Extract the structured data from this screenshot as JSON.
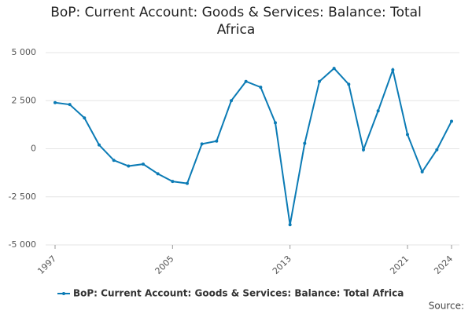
{
  "chart_data": {
    "type": "line",
    "title": "BoP: Current Account: Goods & Services: Balance: Total Africa",
    "x": [
      1997,
      1998,
      1999,
      2000,
      2001,
      2002,
      2003,
      2004,
      2005,
      2006,
      2007,
      2008,
      2009,
      2010,
      2011,
      2012,
      2013,
      2014,
      2015,
      2016,
      2017,
      2018,
      2019,
      2020,
      2021,
      2022,
      2023,
      2024
    ],
    "series": [
      {
        "name": "BoP: Current Account: Goods & Services: Balance: Total Africa",
        "color": "#0b7bb5",
        "values": [
          2400,
          2300,
          1600,
          200,
          -600,
          -900,
          -800,
          -1300,
          -1700,
          -1800,
          250,
          400,
          2500,
          3500,
          3200,
          1350,
          -3950,
          280,
          3500,
          4180,
          3350,
          -50,
          1970,
          4100,
          740,
          -1200,
          -50,
          1430
        ]
      }
    ],
    "xlim": [
      1997,
      2024
    ],
    "xticks": [
      1997,
      2005,
      2013,
      2021,
      2024
    ],
    "ylim": [
      -5000,
      5000
    ],
    "yticks": [
      {
        "value": -5000,
        "label": "-5 000"
      },
      {
        "value": -2500,
        "label": "-2 500"
      },
      0,
      {
        "value": 2500,
        "label": "2 500"
      },
      {
        "value": 5000,
        "label": "5 000"
      }
    ],
    "grid": true,
    "source": "Source:"
  }
}
